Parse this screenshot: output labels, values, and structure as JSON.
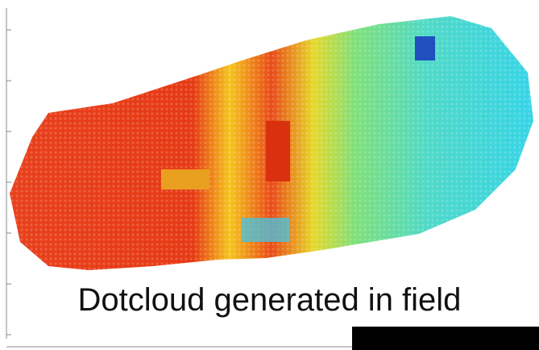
{
  "caption": "Dotcloud generated in field"
}
